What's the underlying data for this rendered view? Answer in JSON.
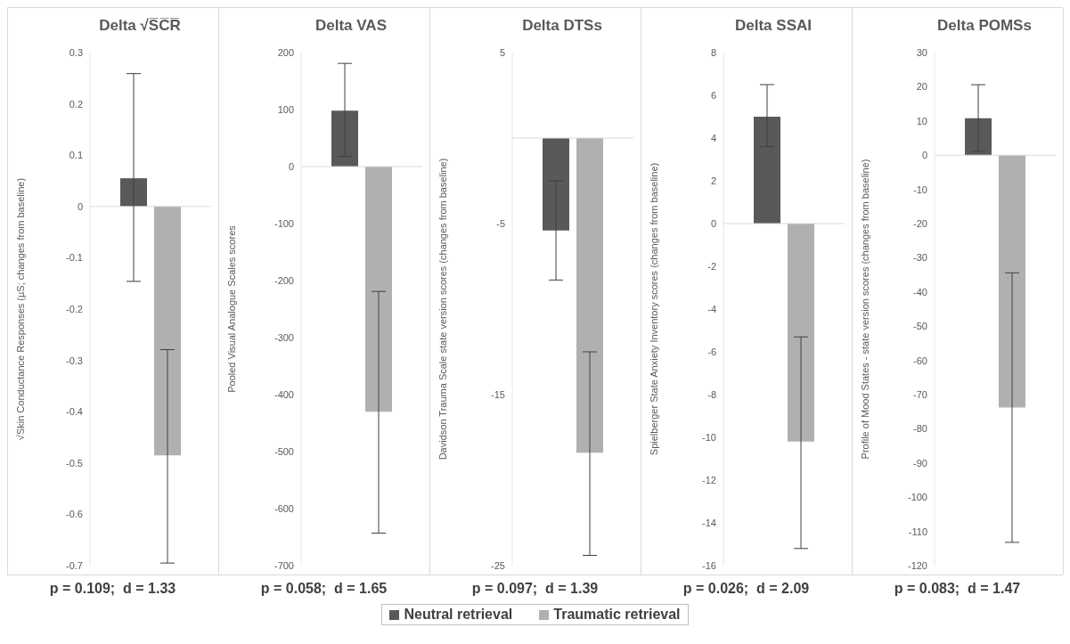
{
  "chart_data": [
    {
      "type": "bar",
      "title": "Delta √S̅C̅R̅",
      "ylabel": "√Skin Conductance Responses (µS; changes from baseline)",
      "categories": [
        null
      ],
      "ylim": [
        -0.7,
        0.3
      ],
      "yticks": [
        -0.7,
        -0.6,
        -0.5,
        -0.4,
        -0.3,
        -0.2,
        -0.1,
        0,
        0.1,
        0.2,
        0.3
      ],
      "grid": false,
      "legend": false,
      "ref_lines": [
        {
          "axis": "y",
          "value": 0,
          "color": "#d9d9d9"
        }
      ],
      "annotations": [
        "p = 0.109;  d = 1.33"
      ],
      "series": [
        {
          "color": "#595959",
          "values": [
            0.055
          ],
          "errors": [
            [
              -0.146,
              0.259
            ]
          ]
        },
        {
          "color": "#b0b0b0",
          "values": [
            -0.485
          ],
          "errors": [
            [
              -0.695,
              -0.279
            ]
          ]
        }
      ]
    },
    {
      "type": "bar",
      "title": "Delta VAS",
      "ylabel": "Pooled Visual Analogue Scales scores",
      "categories": [
        null
      ],
      "ylim": [
        -700,
        200
      ],
      "yticks": [
        -700,
        -600,
        -500,
        -400,
        -300,
        -200,
        -100,
        0,
        100,
        200
      ],
      "grid": false,
      "legend": false,
      "ref_lines": [
        {
          "axis": "y",
          "value": 0,
          "color": "#d9d9d9"
        }
      ],
      "annotations": [
        "p = 0.058;  d = 1.65"
      ],
      "series": [
        {
          "color": "#595959",
          "values": [
            98
          ],
          "errors": [
            [
              18,
              181
            ]
          ]
        },
        {
          "color": "#b0b0b0",
          "values": [
            -430
          ],
          "errors": [
            [
              -643,
              -219
            ]
          ]
        }
      ]
    },
    {
      "type": "bar",
      "title": "Delta DTSs",
      "ylabel": "Davidson Trauma Scale state version scores (changes from baseline)",
      "categories": [
        null
      ],
      "ylim": [
        -25,
        5
      ],
      "yticks": [
        -25,
        -15,
        -5,
        5
      ],
      "grid": false,
      "legend": "bottom",
      "ref_lines": [
        {
          "axis": "y",
          "value": 0,
          "color": "#d9d9d9"
        }
      ],
      "annotations": [
        "p = 0.097;  d = 1.39"
      ],
      "series": [
        {
          "name": "Neutral retrieval",
          "color": "#595959",
          "values": [
            -5.4
          ],
          "errors": [
            [
              -8.3,
              -2.5
            ]
          ]
        },
        {
          "name": "Traumatic retrieval",
          "color": "#b0b0b0",
          "values": [
            -18.4
          ],
          "errors": [
            [
              -24.4,
              -12.5
            ]
          ]
        }
      ]
    },
    {
      "type": "bar",
      "title": "Delta SSAI",
      "ylabel": "Spielberger State Anxiety Inventory scores (changes from baseline)",
      "categories": [
        null
      ],
      "ylim": [
        -16,
        8
      ],
      "yticks": [
        -16,
        -14,
        -12,
        -10,
        -8,
        -6,
        -4,
        -2,
        0,
        2,
        4,
        6,
        8
      ],
      "grid": false,
      "legend": false,
      "ref_lines": [
        {
          "axis": "y",
          "value": 0,
          "color": "#d9d9d9"
        }
      ],
      "annotations": [
        "p = 0.026;  d = 2.09"
      ],
      "series": [
        {
          "color": "#595959",
          "values": [
            5.0
          ],
          "errors": [
            [
              3.6,
              6.5
            ]
          ]
        },
        {
          "color": "#b0b0b0",
          "values": [
            -10.2
          ],
          "errors": [
            [
              -15.2,
              -5.3
            ]
          ]
        }
      ]
    },
    {
      "type": "bar",
      "title": "Delta POMSs",
      "ylabel": "Profile of Mood States - state version scores (changes from baseline)",
      "categories": [
        null
      ],
      "ylim": [
        -120,
        30
      ],
      "yticks": [
        -120,
        -110,
        -100,
        -90,
        -80,
        -70,
        -60,
        -50,
        -40,
        -30,
        -20,
        -10,
        0,
        10,
        20,
        30
      ],
      "grid": false,
      "legend": false,
      "ref_lines": [
        {
          "axis": "y",
          "value": 0,
          "color": "#d9d9d9"
        }
      ],
      "annotations": [
        "p = 0.083;  d = 1.47"
      ],
      "series": [
        {
          "color": "#595959",
          "values": [
            10.8
          ],
          "errors": [
            [
              1.1,
              20.6
            ]
          ]
        },
        {
          "color": "#b0b0b0",
          "values": [
            -73.8
          ],
          "errors": [
            [
              -113.2,
              -34.4
            ]
          ]
        }
      ]
    }
  ]
}
